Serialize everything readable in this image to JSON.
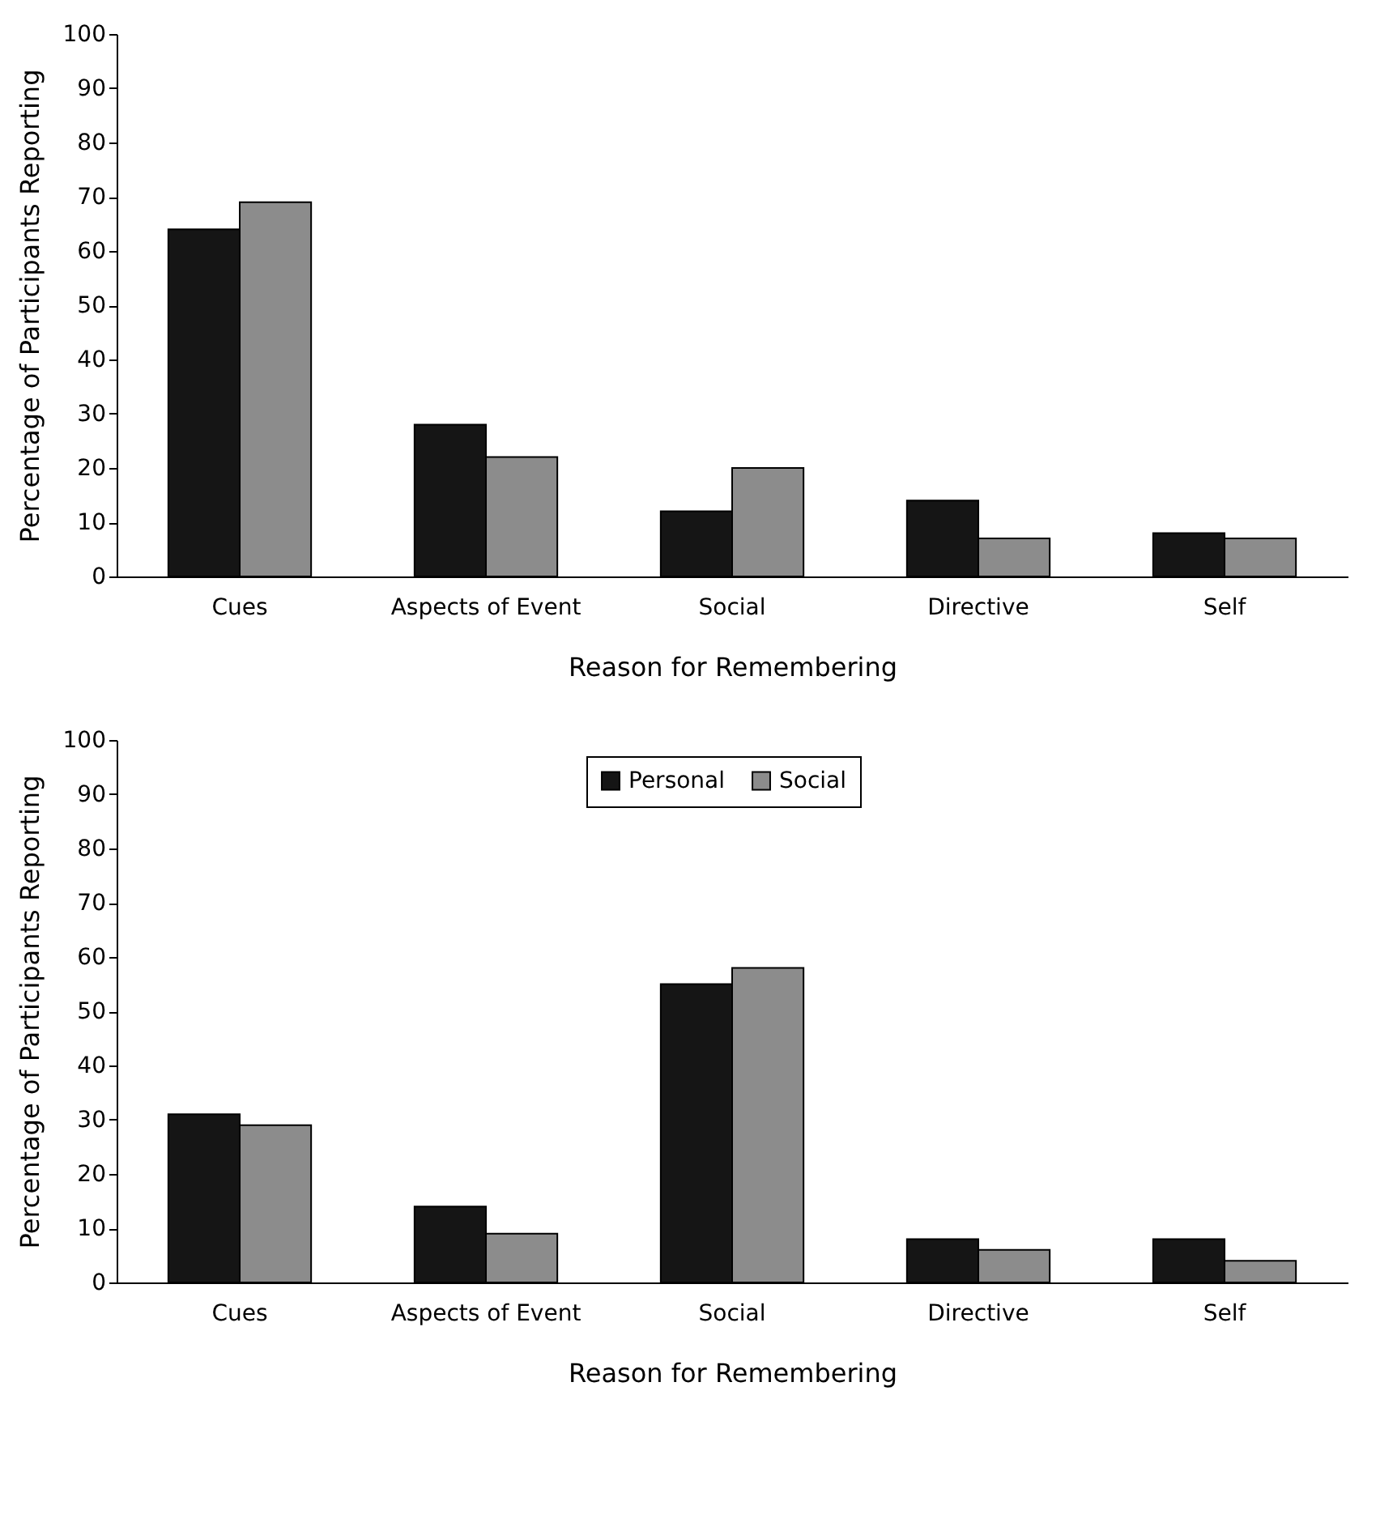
{
  "chart_data": [
    {
      "type": "bar",
      "xlabel": "Reason for Remembering",
      "ylabel": "Percentage of Participants Reporting",
      "categories": [
        "Cues",
        "Aspects of Event",
        "Social",
        "Directive",
        "Self"
      ],
      "series": [
        {
          "color": "#151515",
          "values": [
            64,
            28,
            12,
            14,
            8
          ]
        },
        {
          "color": "#8c8c8c",
          "values": [
            69,
            22,
            20,
            7,
            7
          ]
        }
      ],
      "ylim": [
        0,
        100
      ],
      "yticks": [
        0,
        10,
        20,
        30,
        40,
        50,
        60,
        70,
        80,
        90,
        100
      ],
      "grid": false,
      "legend": false
    },
    {
      "type": "bar",
      "xlabel": "Reason for Remembering",
      "ylabel": "Percentage of Participants Reporting",
      "categories": [
        "Cues",
        "Aspects of Event",
        "Social",
        "Directive",
        "Self"
      ],
      "series": [
        {
          "name": "Personal",
          "color": "#151515",
          "values": [
            31,
            14,
            55,
            8,
            8
          ]
        },
        {
          "name": "Social",
          "color": "#8c8c8c",
          "values": [
            29,
            9,
            58,
            6,
            4
          ]
        }
      ],
      "ylim": [
        0,
        100
      ],
      "yticks": [
        0,
        10,
        20,
        30,
        40,
        50,
        60,
        70,
        80,
        90,
        100
      ],
      "grid": false,
      "legend": "top"
    }
  ]
}
